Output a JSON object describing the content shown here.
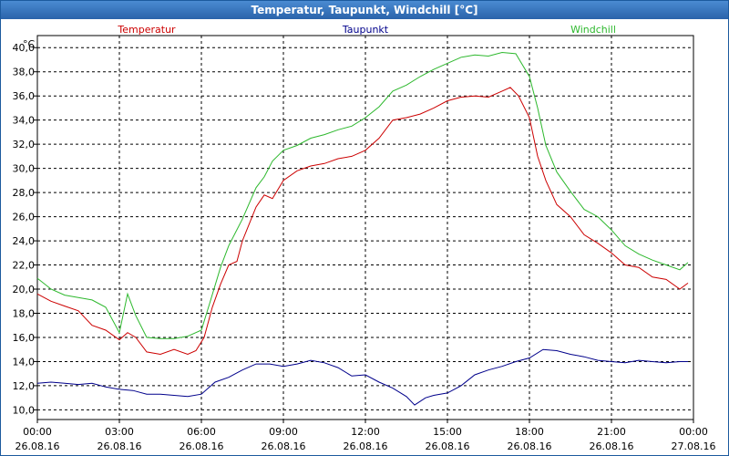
{
  "window": {
    "title": "Temperatur, Taupunkt, Windchill [°C]"
  },
  "chart_data": {
    "type": "line",
    "title": "Temperatur, Taupunkt, Windchill [°C]",
    "ylabel": "°C",
    "ylim": [
      9.2,
      41.0
    ],
    "xlim": [
      0,
      24
    ],
    "grid": true,
    "y_ticks": [
      {
        "value": 10,
        "label": "10,0"
      },
      {
        "value": 12,
        "label": "12,0"
      },
      {
        "value": 14,
        "label": "14,0"
      },
      {
        "value": 16,
        "label": "16,0"
      },
      {
        "value": 18,
        "label": "18,0"
      },
      {
        "value": 20,
        "label": "20,0"
      },
      {
        "value": 22,
        "label": "22,0"
      },
      {
        "value": 24,
        "label": "24,0"
      },
      {
        "value": 26,
        "label": "26,0"
      },
      {
        "value": 28,
        "label": "28,0"
      },
      {
        "value": 30,
        "label": "30,0"
      },
      {
        "value": 32,
        "label": "32,0"
      },
      {
        "value": 34,
        "label": "34,0"
      },
      {
        "value": 36,
        "label": "36,0"
      },
      {
        "value": 38,
        "label": "38,0"
      },
      {
        "value": 40,
        "label": "40,0"
      }
    ],
    "x_ticks": [
      {
        "value": 0,
        "time": "00:00",
        "date": "26.08.16"
      },
      {
        "value": 3,
        "time": "03:00",
        "date": "26.08.16"
      },
      {
        "value": 6,
        "time": "06:00",
        "date": "26.08.16"
      },
      {
        "value": 9,
        "time": "09:00",
        "date": "26.08.16"
      },
      {
        "value": 12,
        "time": "12:00",
        "date": "26.08.16"
      },
      {
        "value": 15,
        "time": "15:00",
        "date": "26.08.16"
      },
      {
        "value": 18,
        "time": "18:00",
        "date": "26.08.16"
      },
      {
        "value": 21,
        "time": "21:00",
        "date": "26.08.16"
      },
      {
        "value": 24,
        "time": "00:00",
        "date": "27.08.16"
      }
    ],
    "series": [
      {
        "name": "Temperatur",
        "color": "#cc0000",
        "legend": "top-left",
        "points": [
          [
            0,
            19.6
          ],
          [
            0.5,
            19.0
          ],
          [
            1,
            18.6
          ],
          [
            1.5,
            18.2
          ],
          [
            2,
            17.0
          ],
          [
            2.5,
            16.6
          ],
          [
            3,
            15.8
          ],
          [
            3.3,
            16.4
          ],
          [
            3.6,
            16.0
          ],
          [
            4,
            14.8
          ],
          [
            4.5,
            14.6
          ],
          [
            5,
            15.0
          ],
          [
            5.5,
            14.6
          ],
          [
            5.8,
            14.9
          ],
          [
            6.1,
            16.0
          ],
          [
            6.4,
            18.5
          ],
          [
            6.7,
            20.4
          ],
          [
            7,
            22.0
          ],
          [
            7.3,
            22.3
          ],
          [
            7.5,
            24.0
          ],
          [
            8,
            26.8
          ],
          [
            8.3,
            27.8
          ],
          [
            8.6,
            27.5
          ],
          [
            9,
            29.0
          ],
          [
            9.5,
            29.8
          ],
          [
            10,
            30.2
          ],
          [
            10.5,
            30.4
          ],
          [
            11,
            30.8
          ],
          [
            11.5,
            31.0
          ],
          [
            12,
            31.5
          ],
          [
            12.5,
            32.5
          ],
          [
            13,
            34.0
          ],
          [
            13.5,
            34.2
          ],
          [
            14,
            34.5
          ],
          [
            14.5,
            35.0
          ],
          [
            15,
            35.6
          ],
          [
            15.5,
            35.9
          ],
          [
            16,
            36.0
          ],
          [
            16.5,
            35.9
          ],
          [
            17,
            36.4
          ],
          [
            17.3,
            36.7
          ],
          [
            17.6,
            36.0
          ],
          [
            18,
            34.2
          ],
          [
            18.3,
            31.0
          ],
          [
            18.6,
            29.0
          ],
          [
            19,
            27.0
          ],
          [
            19.5,
            26.0
          ],
          [
            20,
            24.5
          ],
          [
            20.5,
            23.8
          ],
          [
            21,
            23.0
          ],
          [
            21.5,
            22.0
          ],
          [
            22,
            21.8
          ],
          [
            22.5,
            21.0
          ],
          [
            23,
            20.8
          ],
          [
            23.5,
            20.0
          ],
          [
            23.8,
            20.5
          ]
        ]
      },
      {
        "name": "Taupunkt",
        "color": "#00008b",
        "legend": "top-center",
        "points": [
          [
            0,
            12.2
          ],
          [
            0.5,
            12.3
          ],
          [
            1,
            12.2
          ],
          [
            1.5,
            12.1
          ],
          [
            2,
            12.2
          ],
          [
            2.5,
            11.9
          ],
          [
            3,
            11.7
          ],
          [
            3.5,
            11.6
          ],
          [
            4,
            11.3
          ],
          [
            4.5,
            11.3
          ],
          [
            5,
            11.2
          ],
          [
            5.5,
            11.1
          ],
          [
            6,
            11.3
          ],
          [
            6.5,
            12.3
          ],
          [
            7,
            12.7
          ],
          [
            7.5,
            13.3
          ],
          [
            8,
            13.8
          ],
          [
            8.5,
            13.8
          ],
          [
            9,
            13.6
          ],
          [
            9.5,
            13.8
          ],
          [
            10,
            14.1
          ],
          [
            10.5,
            13.9
          ],
          [
            11,
            13.5
          ],
          [
            11.5,
            12.8
          ],
          [
            12,
            12.9
          ],
          [
            12.5,
            12.3
          ],
          [
            13,
            11.8
          ],
          [
            13.5,
            11.1
          ],
          [
            13.8,
            10.4
          ],
          [
            14.2,
            11.0
          ],
          [
            14.5,
            11.2
          ],
          [
            15,
            11.4
          ],
          [
            15.5,
            12.0
          ],
          [
            16,
            12.9
          ],
          [
            16.5,
            13.3
          ],
          [
            17,
            13.6
          ],
          [
            17.5,
            14.0
          ],
          [
            18,
            14.3
          ],
          [
            18.5,
            15.0
          ],
          [
            19,
            14.9
          ],
          [
            19.5,
            14.6
          ],
          [
            20,
            14.4
          ],
          [
            20.5,
            14.1
          ],
          [
            21,
            14.0
          ],
          [
            21.5,
            13.9
          ],
          [
            22,
            14.1
          ],
          [
            22.5,
            14.0
          ],
          [
            23,
            13.9
          ],
          [
            23.5,
            14.0
          ],
          [
            23.8,
            14.0
          ]
        ]
      },
      {
        "name": "Windchill",
        "color": "#2db82d",
        "legend": "top-right",
        "points": [
          [
            0,
            20.9
          ],
          [
            0.5,
            20.0
          ],
          [
            1,
            19.5
          ],
          [
            1.5,
            19.3
          ],
          [
            2,
            19.1
          ],
          [
            2.5,
            18.5
          ],
          [
            3,
            16.4
          ],
          [
            3.3,
            19.6
          ],
          [
            3.6,
            17.8
          ],
          [
            4,
            16.0
          ],
          [
            4.5,
            15.9
          ],
          [
            5,
            15.9
          ],
          [
            5.5,
            16.1
          ],
          [
            6,
            16.6
          ],
          [
            6.3,
            18.8
          ],
          [
            6.7,
            21.8
          ],
          [
            7,
            23.6
          ],
          [
            7.5,
            25.8
          ],
          [
            8,
            28.4
          ],
          [
            8.3,
            29.3
          ],
          [
            8.6,
            30.6
          ],
          [
            9,
            31.5
          ],
          [
            9.5,
            31.9
          ],
          [
            10,
            32.5
          ],
          [
            10.5,
            32.8
          ],
          [
            11,
            33.2
          ],
          [
            11.5,
            33.5
          ],
          [
            12,
            34.2
          ],
          [
            12.5,
            35.1
          ],
          [
            13,
            36.4
          ],
          [
            13.5,
            36.9
          ],
          [
            14,
            37.6
          ],
          [
            14.5,
            38.2
          ],
          [
            15,
            38.7
          ],
          [
            15.5,
            39.2
          ],
          [
            16,
            39.4
          ],
          [
            16.5,
            39.3
          ],
          [
            17,
            39.6
          ],
          [
            17.5,
            39.5
          ],
          [
            18,
            37.6
          ],
          [
            18.3,
            35.0
          ],
          [
            18.6,
            31.9
          ],
          [
            19,
            29.7
          ],
          [
            19.5,
            28.1
          ],
          [
            20,
            26.6
          ],
          [
            20.5,
            26.0
          ],
          [
            21,
            24.9
          ],
          [
            21.5,
            23.6
          ],
          [
            22,
            22.9
          ],
          [
            22.5,
            22.4
          ],
          [
            23,
            22.0
          ],
          [
            23.5,
            21.6
          ],
          [
            23.8,
            22.2
          ]
        ]
      }
    ]
  }
}
